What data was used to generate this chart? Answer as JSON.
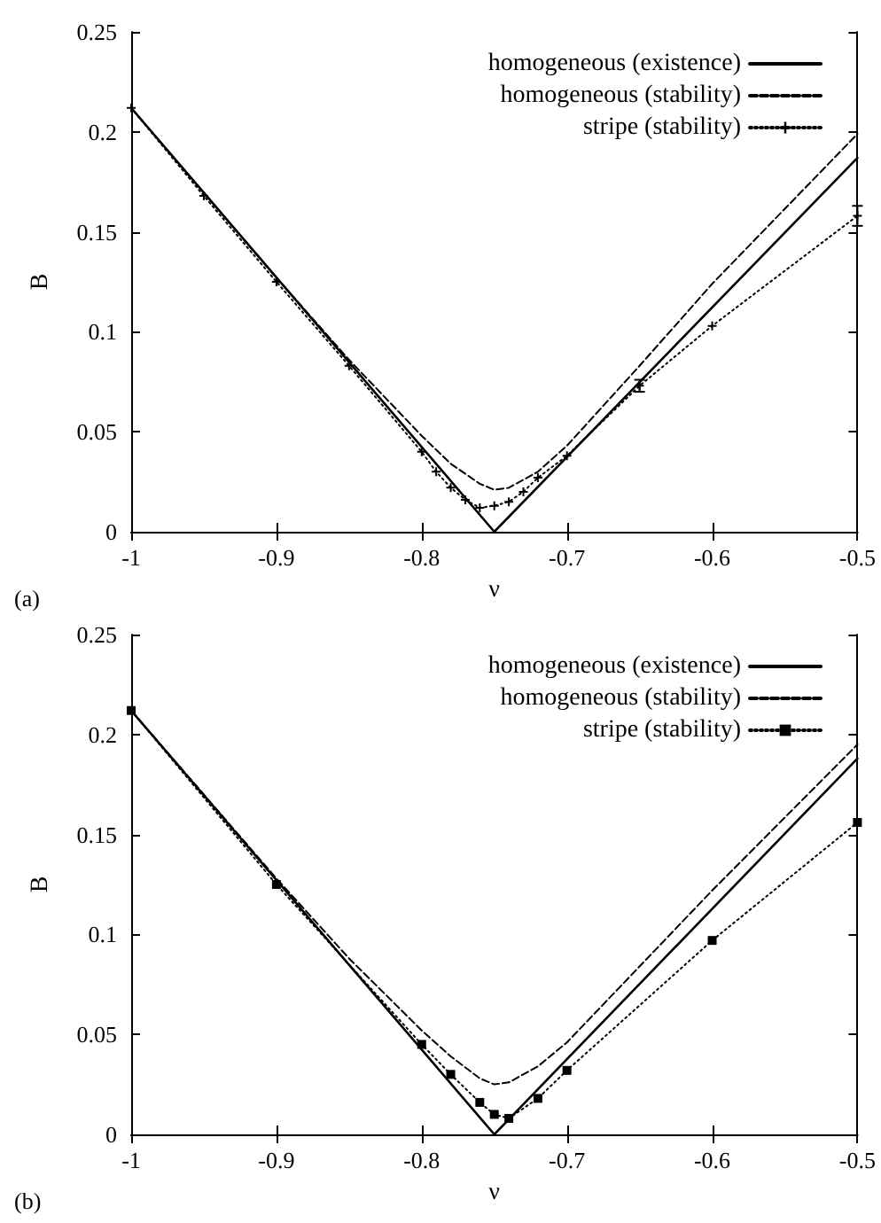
{
  "chart_data": [
    {
      "type": "line",
      "xlabel": "ν",
      "ylabel": "B",
      "annotations": [
        "(a)"
      ],
      "xlim": [
        -1,
        -0.5
      ],
      "ylim": [
        0,
        0.25
      ],
      "xticks": [
        -1,
        -0.9,
        -0.8,
        -0.7,
        -0.6,
        -0.5
      ],
      "yticks": [
        0,
        0.05,
        0.1,
        0.15,
        0.2,
        0.25
      ],
      "grid": false,
      "legend": "top right",
      "series": [
        {
          "name": "homogeneous (existence)",
          "color": "#000000",
          "line_style": "solid",
          "marker": "none",
          "x": [
            -1,
            -0.75,
            -0.5
          ],
          "values": [
            0.212,
            0,
            0.187
          ]
        },
        {
          "name": "homogeneous (stability)",
          "color": "#000000",
          "line_style": "dashed",
          "marker": "none",
          "x": [
            -1,
            -0.9,
            -0.85,
            -0.8,
            -0.78,
            -0.76,
            -0.75,
            -0.74,
            -0.72,
            -0.7,
            -0.65,
            -0.6,
            -0.5
          ],
          "values": [
            0.212,
            0.127,
            0.086,
            0.048,
            0.034,
            0.024,
            0.021,
            0.022,
            0.03,
            0.043,
            0.083,
            0.124,
            0.199
          ]
        },
        {
          "name": "stripe (stability)",
          "color": "#000000",
          "line_style": "dotted",
          "marker": "cross",
          "x": [
            -1,
            -0.95,
            -0.9,
            -0.85,
            -0.8,
            -0.79,
            -0.78,
            -0.77,
            -0.76,
            -0.75,
            -0.74,
            -0.73,
            -0.72,
            -0.7,
            -0.65,
            -0.6,
            -0.5
          ],
          "values": [
            0.212,
            0.168,
            0.125,
            0.083,
            0.04,
            0.03,
            0.022,
            0.016,
            0.012,
            0.013,
            0.015,
            0.02,
            0.027,
            0.038,
            0.073,
            0.103,
            0.158
          ],
          "errors": [
            null,
            null,
            null,
            null,
            null,
            null,
            null,
            null,
            null,
            null,
            null,
            null,
            null,
            null,
            0.003,
            null,
            0.005
          ]
        }
      ]
    },
    {
      "type": "line",
      "xlabel": "ν",
      "ylabel": "B",
      "annotations": [
        "(b)"
      ],
      "xlim": [
        -1,
        -0.5
      ],
      "ylim": [
        0,
        0.25
      ],
      "xticks": [
        -1,
        -0.9,
        -0.8,
        -0.7,
        -0.6,
        -0.5
      ],
      "yticks": [
        0,
        0.05,
        0.1,
        0.15,
        0.2,
        0.25
      ],
      "grid": false,
      "legend": "top right",
      "series": [
        {
          "name": "homogeneous (existence)",
          "color": "#000000",
          "line_style": "solid",
          "marker": "none",
          "x": [
            -1,
            -0.75,
            -0.5
          ],
          "values": [
            0.212,
            0,
            0.188
          ]
        },
        {
          "name": "homogeneous (stability)",
          "color": "#000000",
          "line_style": "dashed",
          "marker": "none",
          "x": [
            -1,
            -0.9,
            -0.85,
            -0.8,
            -0.78,
            -0.76,
            -0.75,
            -0.74,
            -0.72,
            -0.7,
            -0.65,
            -0.6,
            -0.5
          ],
          "values": [
            0.212,
            0.128,
            0.088,
            0.052,
            0.039,
            0.028,
            0.025,
            0.026,
            0.034,
            0.046,
            0.084,
            0.122,
            0.195
          ]
        },
        {
          "name": "stripe (stability)",
          "color": "#000000",
          "line_style": "dotted",
          "marker": "square",
          "x": [
            -1,
            -0.9,
            -0.8,
            -0.78,
            -0.76,
            -0.75,
            -0.74,
            -0.72,
            -0.7,
            -0.6,
            -0.5
          ],
          "values": [
            0.212,
            0.125,
            0.045,
            0.03,
            0.016,
            0.01,
            0.008,
            0.018,
            0.032,
            0.097,
            0.156
          ]
        }
      ]
    }
  ]
}
